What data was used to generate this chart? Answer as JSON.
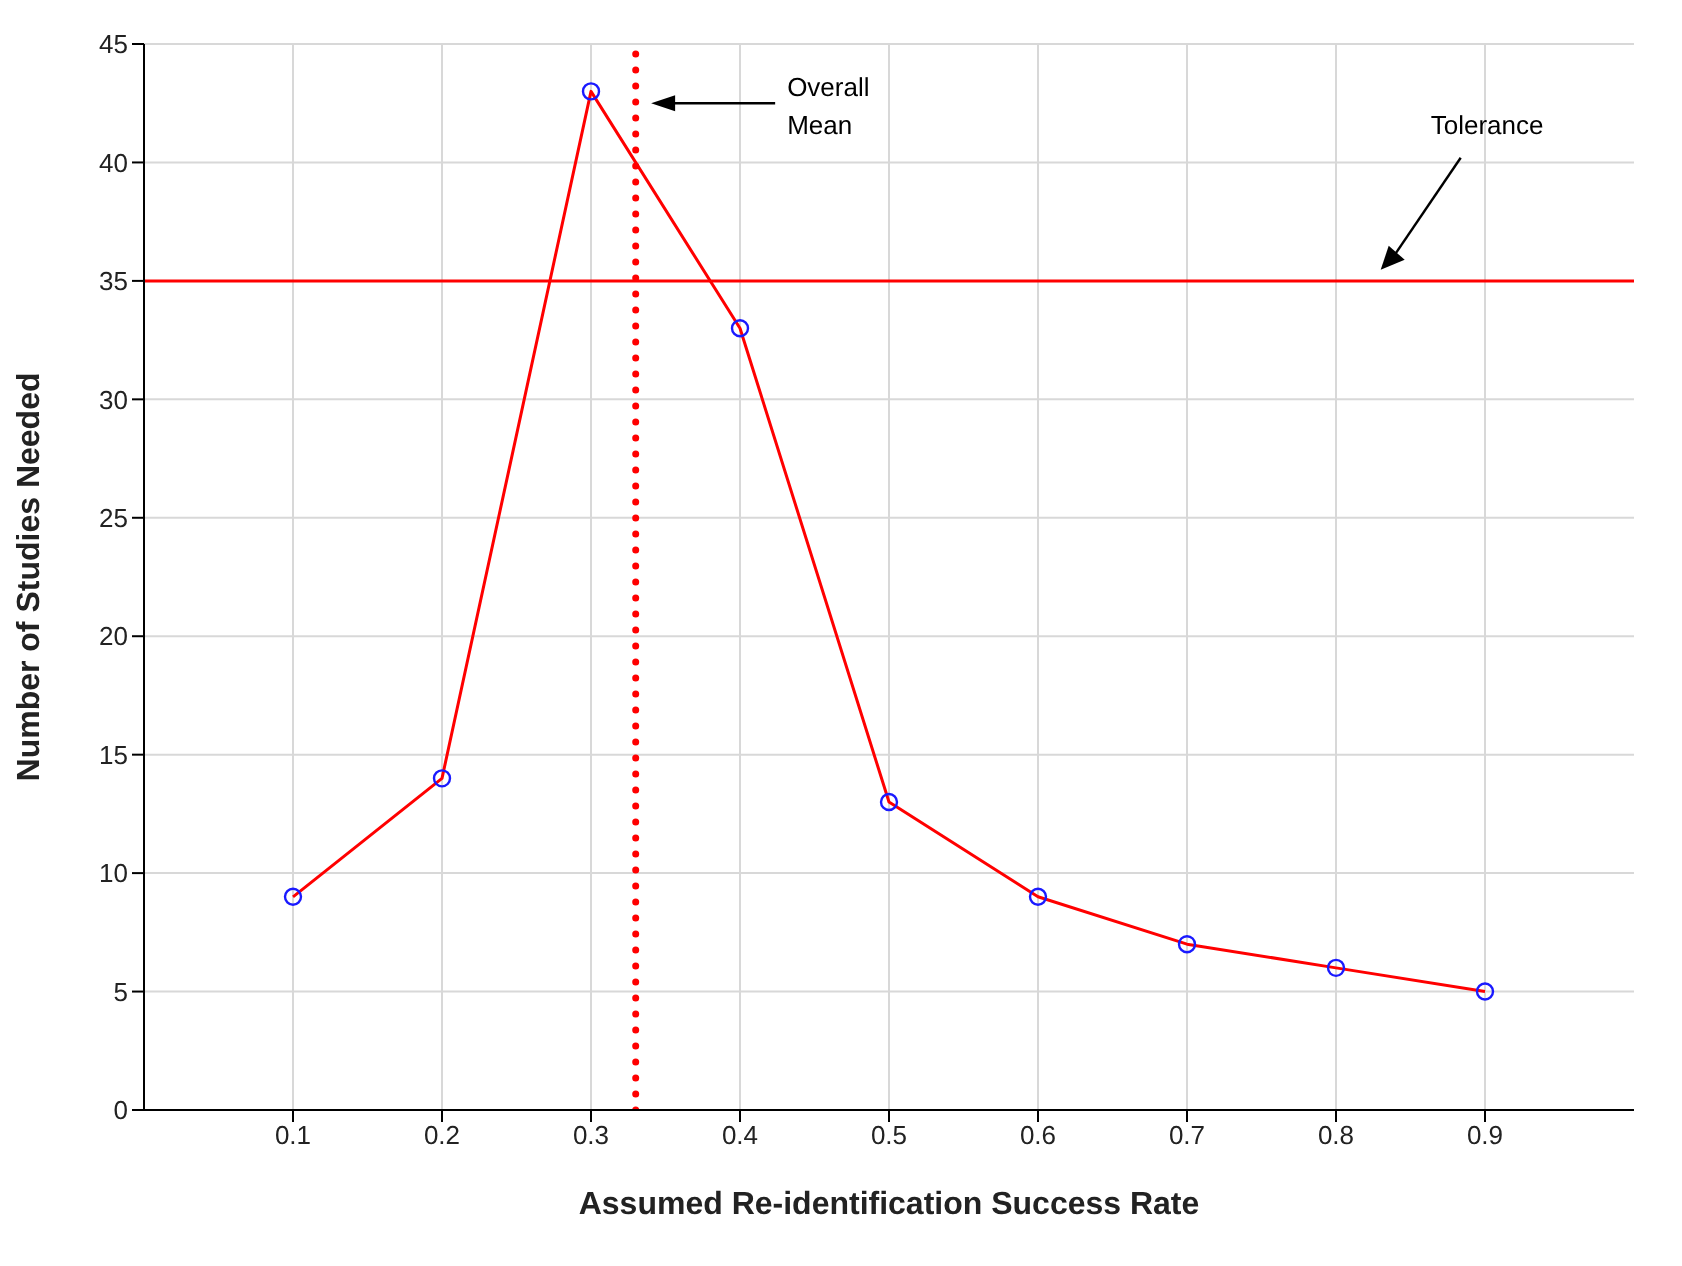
{
  "chart_data": {
    "type": "line",
    "xlabel": "Assumed Re-identification Success Rate",
    "ylabel": "Number of Studies Needed",
    "x": [
      0.1,
      0.2,
      0.3,
      0.4,
      0.5,
      0.6,
      0.7,
      0.8,
      0.9
    ],
    "series": [
      {
        "color": "#ff0000",
        "values": [
          9,
          14,
          43,
          33,
          13,
          9,
          7,
          6,
          5
        ]
      }
    ],
    "xlim": [
      0,
      1
    ],
    "xticks": [
      0.1,
      0.2,
      0.3,
      0.4,
      0.5,
      0.6,
      0.7,
      0.8,
      0.9
    ],
    "ylim": [
      0,
      45
    ],
    "yticks": [
      0,
      5,
      10,
      15,
      20,
      25,
      30,
      35,
      40,
      45
    ],
    "ref_lines": [
      {
        "axis": "y",
        "value": 35,
        "color": "#ff0000",
        "line_style": "solid"
      },
      {
        "axis": "x",
        "value": 0.33,
        "color": "#ff0000",
        "line_style": "dotted"
      }
    ],
    "annotations": [
      "Overall Mean",
      "Tolerance"
    ],
    "grid": true,
    "marker": "circle",
    "line_style": "solid"
  }
}
